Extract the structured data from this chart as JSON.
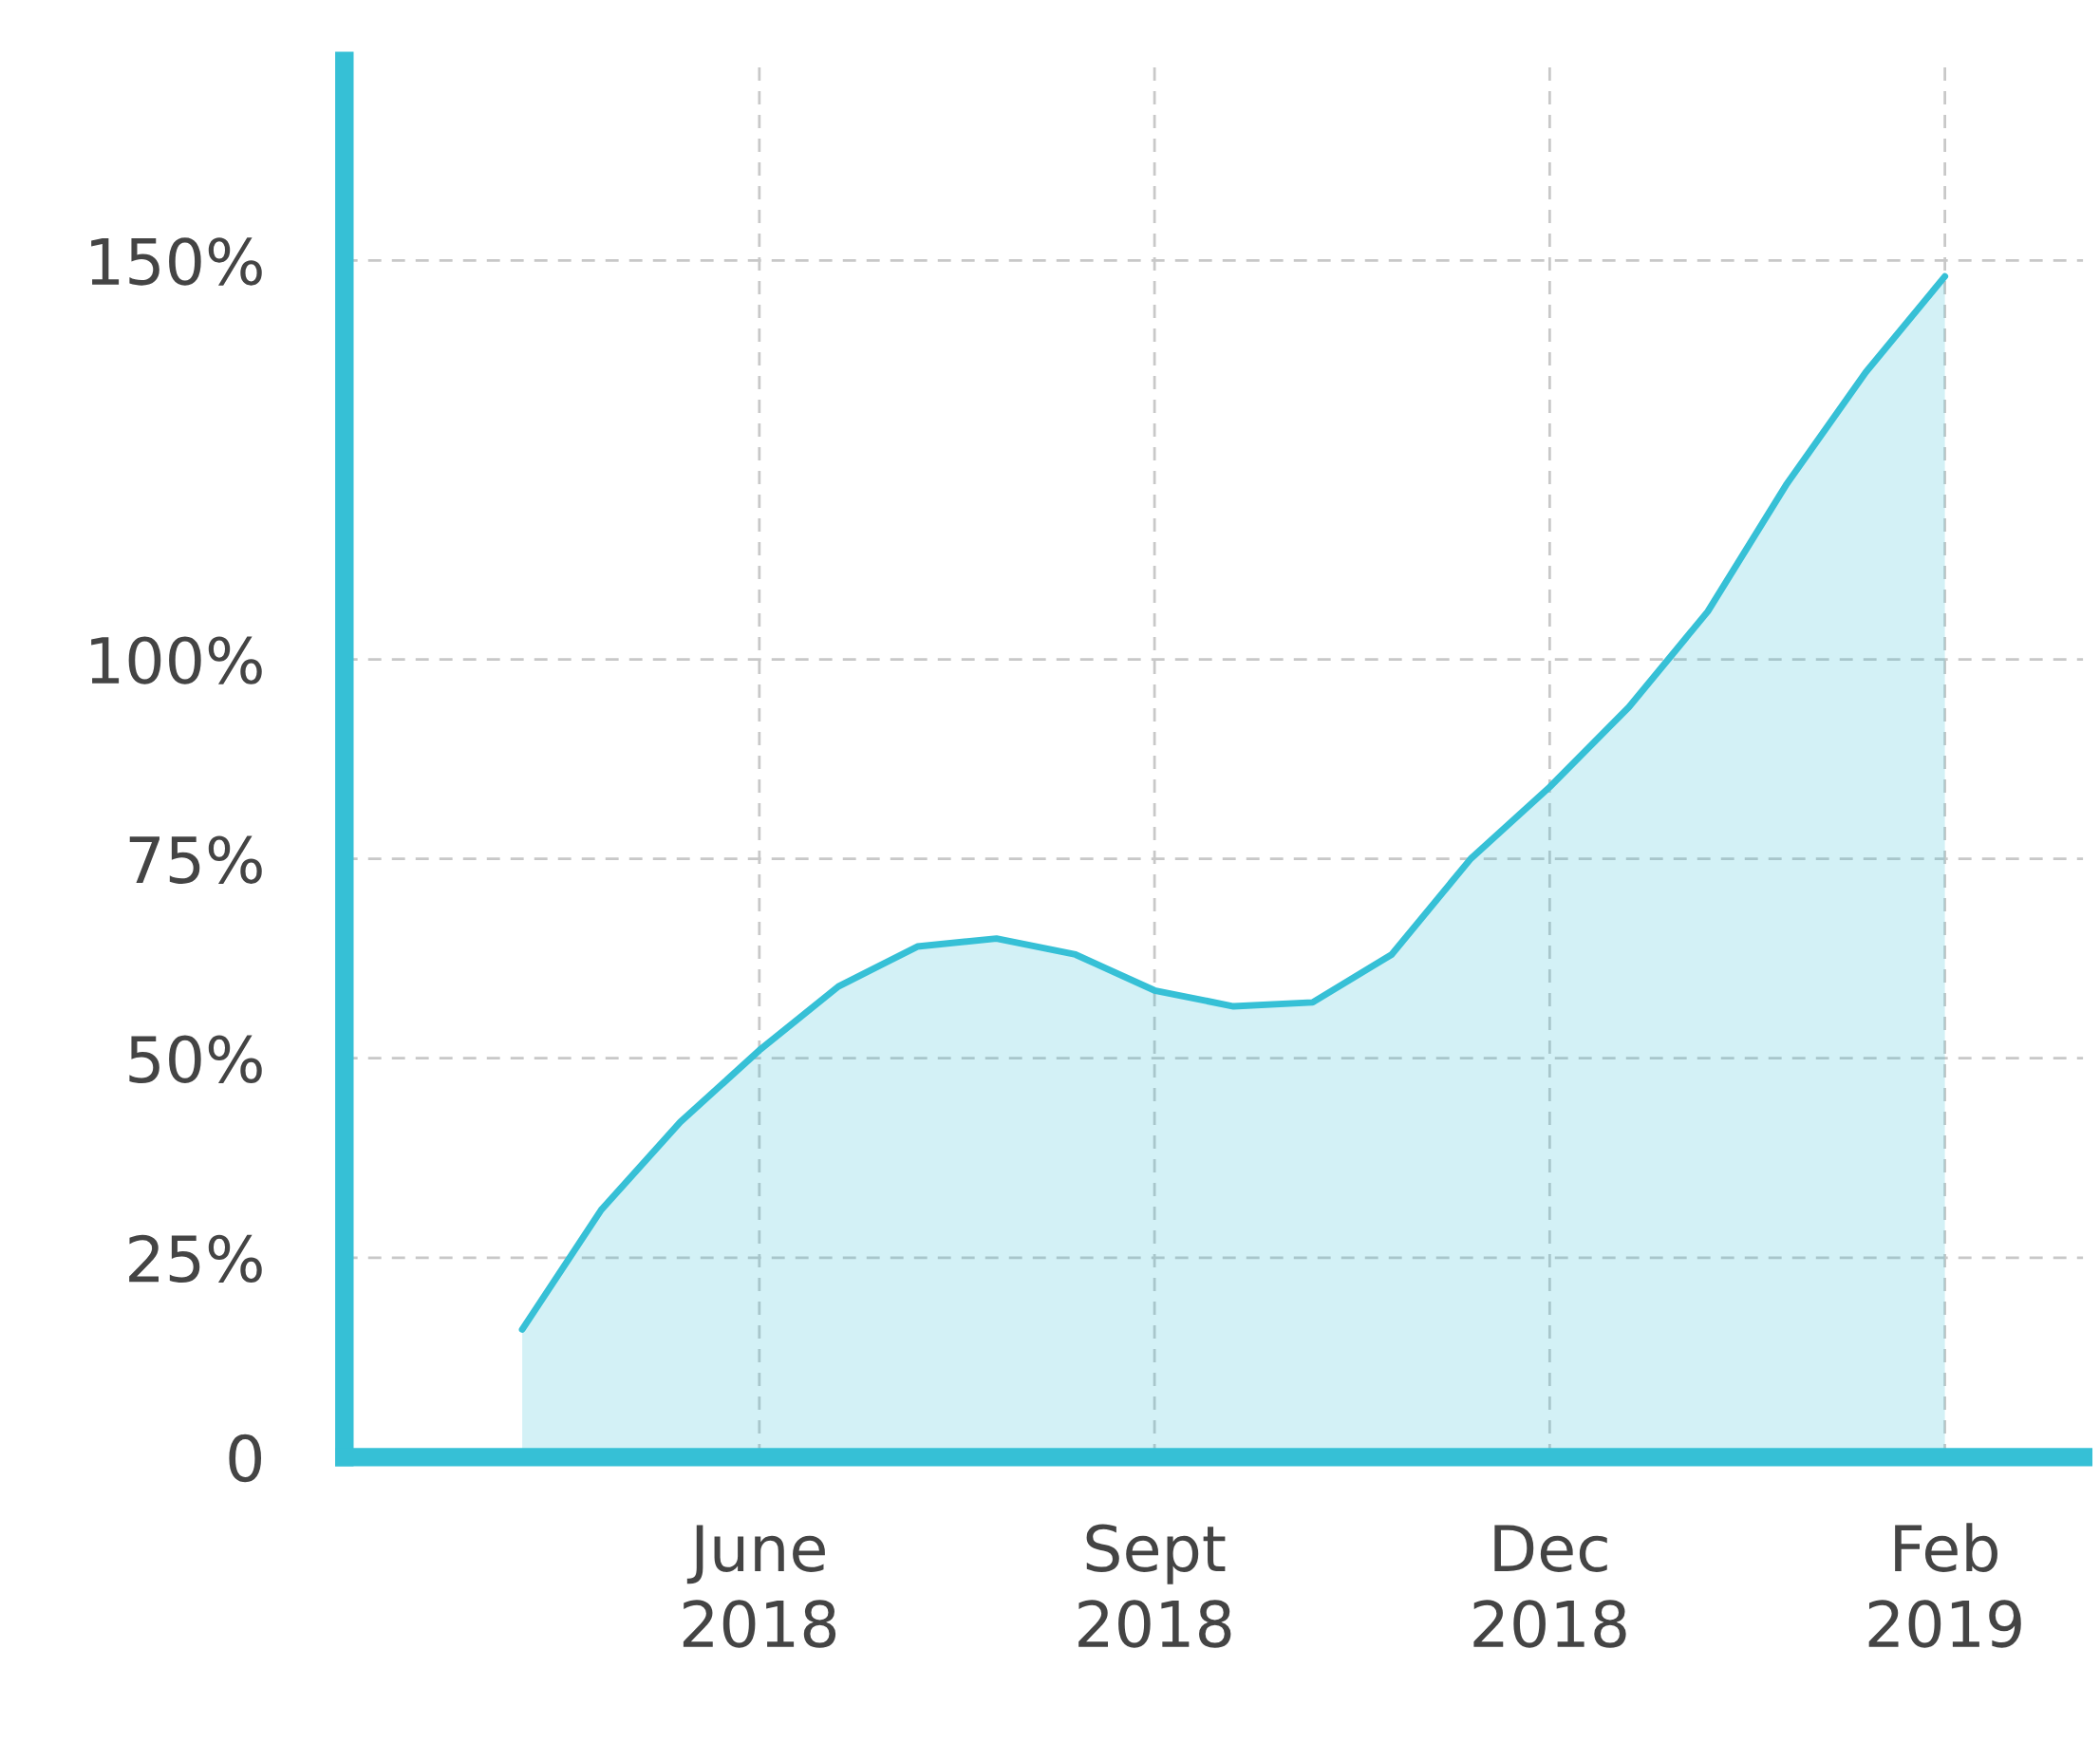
{
  "chart_data": {
    "type": "area",
    "categories": [
      null,
      null,
      null,
      "June\n2018",
      null,
      null,
      null,
      null,
      "Sept\n2018",
      null,
      null,
      null,
      null,
      "Dec\n2018",
      null,
      null,
      null,
      null,
      "Feb\n2019"
    ],
    "series": [
      {
        "color": "#36c0d6",
        "values": [
          16,
          31,
          42,
          51,
          59,
          64,
          65,
          63,
          58.5,
          56.5,
          57,
          63,
          75,
          84,
          94,
          106,
          122,
          136,
          148
        ]
      }
    ],
    "ylim": [
      0,
      175
    ],
    "yticks": [
      {
        "value": 0,
        "label": "0"
      },
      {
        "value": 25,
        "label": "25%"
      },
      {
        "value": 50,
        "label": "50%"
      },
      {
        "value": 75,
        "label": "75%"
      },
      {
        "value": 100,
        "label": "100%"
      },
      {
        "value": 150,
        "label": "150%"
      }
    ],
    "grid": true,
    "line_style": "solid",
    "marker": "none"
  }
}
